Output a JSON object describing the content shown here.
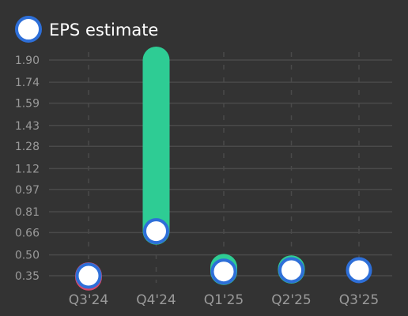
{
  "chart_data": {
    "type": "bar",
    "categories": [
      "Q3'24",
      "Q4'24",
      "Q1'25",
      "Q2'25",
      "Q3'25"
    ],
    "series": [
      {
        "name": "EPS estimate",
        "values": [
          0.35,
          0.67,
          0.38,
          0.39,
          0.39
        ]
      }
    ],
    "actual_values": [
      0.34,
      1.9,
      0.41,
      0.4,
      null
    ],
    "yticks": [
      "1.90",
      "1.74",
      "1.59",
      "1.43",
      "1.28",
      "1.12",
      "0.97",
      "0.81",
      "0.66",
      "0.50",
      "0.35"
    ],
    "ylim": [
      0.35,
      1.9
    ],
    "grid": true,
    "legend": {
      "label": "EPS estimate",
      "position": "top-left"
    },
    "colors": {
      "background": "#333333",
      "beat": "#2ecc94",
      "miss": "#d9486a",
      "estimate_fill": "#ffffff",
      "estimate_stroke": "#2e6fd8",
      "grid": "#4a4a4a",
      "tick_text": "#9a9a9a"
    }
  }
}
